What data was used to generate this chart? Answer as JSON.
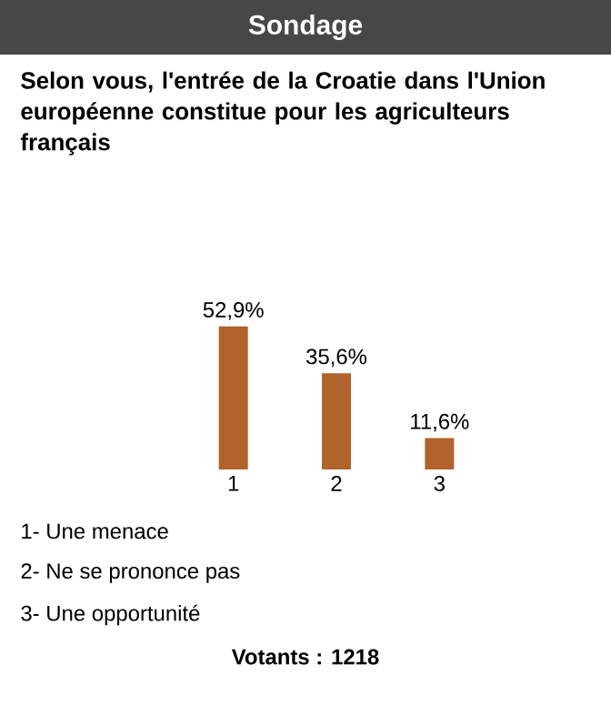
{
  "chart_data": {
    "type": "bar",
    "title": "Sondage",
    "subtitle": "Selon vous, l'entrée de la Croatie dans l'Union européenne constitue pour les agriculteurs français",
    "categories": [
      "1",
      "2",
      "3"
    ],
    "values": [
      52.9,
      35.6,
      11.6
    ],
    "value_labels": [
      "52,9%",
      "35,6%",
      "11,6%"
    ],
    "color": "#b0642c",
    "annotations": [
      "1- Une menace",
      "2- Ne se prononce pas",
      "3- Une opportunité",
      "Votants : 1218"
    ]
  }
}
